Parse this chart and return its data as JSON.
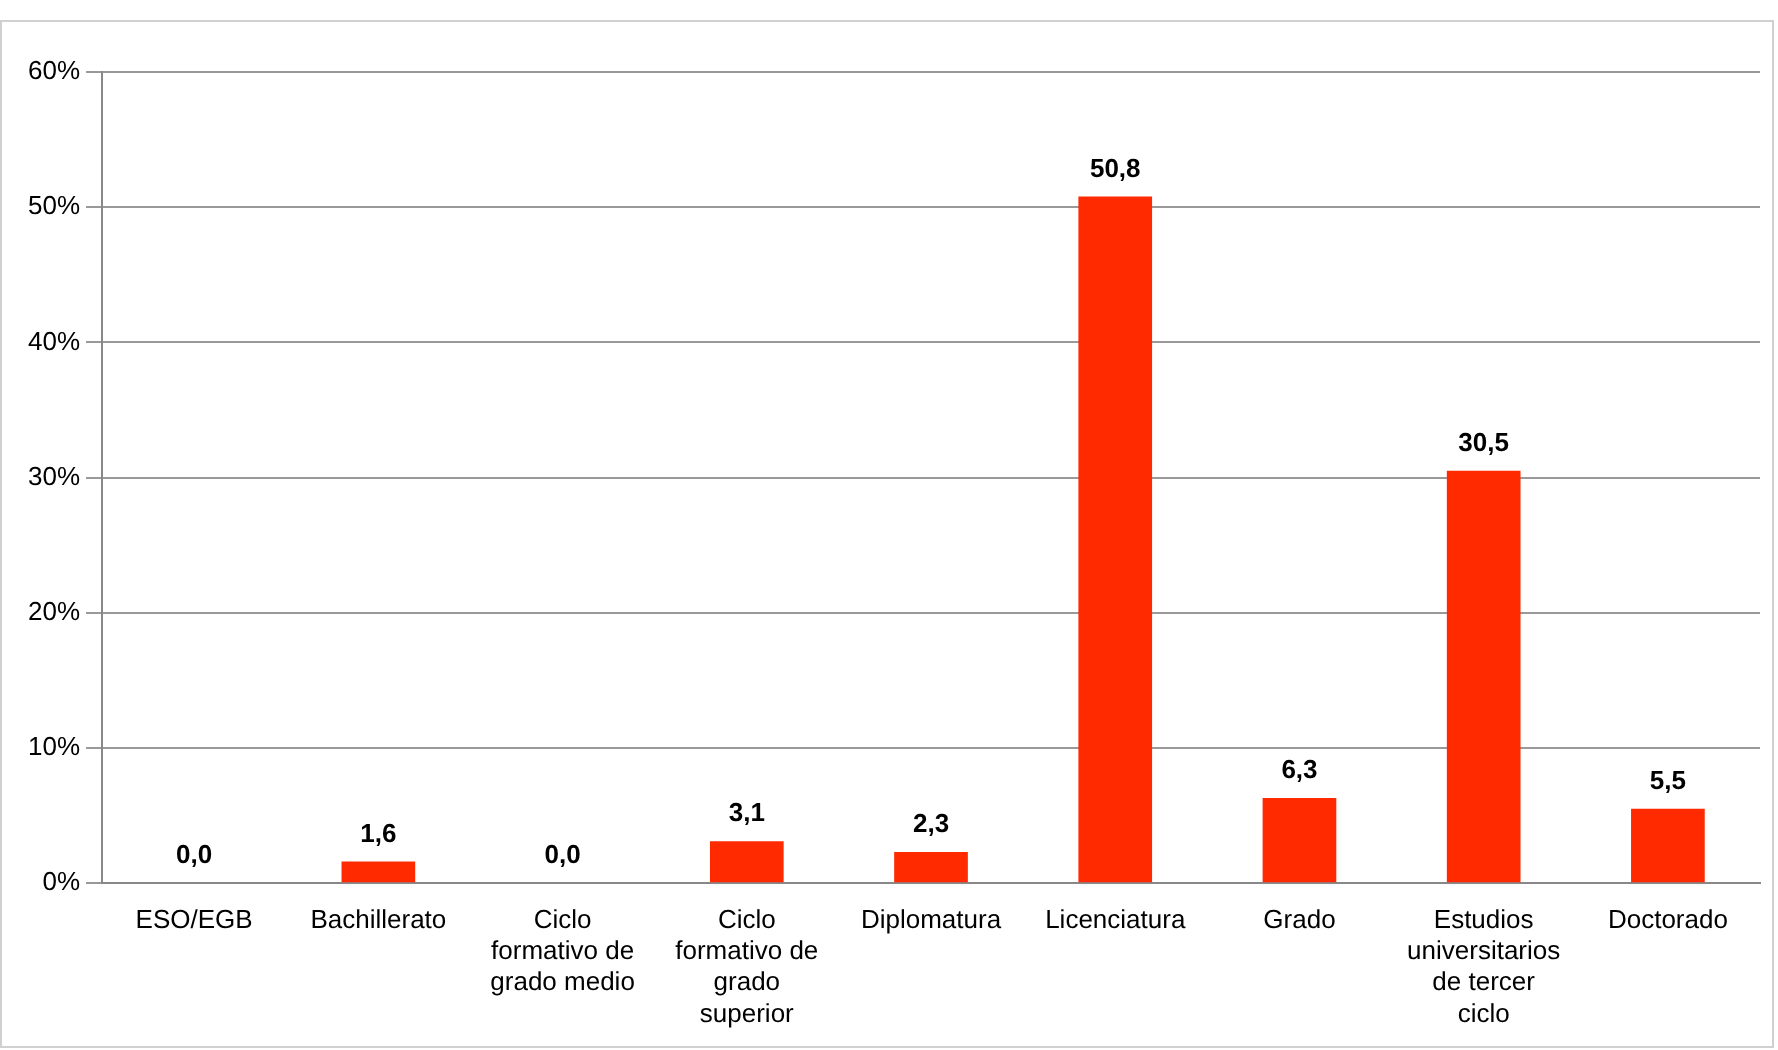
{
  "chart_data": {
    "type": "bar",
    "categories": [
      "ESO/EGB",
      "Bachillerato",
      "Ciclo formativo de grado medio",
      "Ciclo formativo de grado superior",
      "Diplomatura",
      "Licenciatura",
      "Grado",
      "Estudios universitarios de tercer ciclo",
      "Doctorado"
    ],
    "values": [
      0.0,
      1.6,
      0.0,
      3.1,
      2.3,
      50.8,
      6.3,
      30.5,
      5.5
    ],
    "value_labels": [
      "0,0",
      "1,6",
      "0,0",
      "3,1",
      "2,3",
      "50,8",
      "6,3",
      "30,5",
      "5,5"
    ],
    "color": "#ff2a00",
    "ylim": [
      0,
      60
    ],
    "yticks": [
      {
        "value": 0,
        "label": "0%"
      },
      {
        "value": 10,
        "label": "10%"
      },
      {
        "value": 20,
        "label": "20%"
      },
      {
        "value": 30,
        "label": "30%"
      },
      {
        "value": 40,
        "label": "40%"
      },
      {
        "value": 50,
        "label": "50%"
      },
      {
        "value": 60,
        "label": "60%"
      }
    ],
    "grid": "y",
    "legend": false
  }
}
